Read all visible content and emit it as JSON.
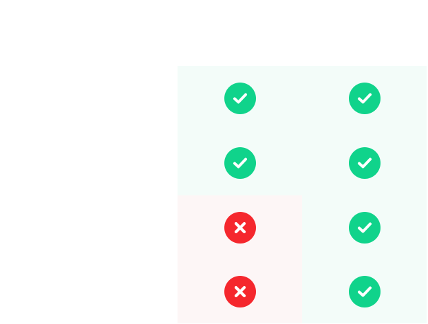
{
  "colors": {
    "yes_icon": "#10d38b",
    "no_icon": "#f5272d",
    "yes_cell_bg": "#f3fcf9",
    "no_cell_bg": "#fdf6f6",
    "page_bg": "#ffffff"
  },
  "comparison": {
    "rows": [
      {
        "cells": [
          {
            "status": "yes",
            "icon": "check-icon"
          },
          {
            "status": "yes",
            "icon": "check-icon"
          }
        ]
      },
      {
        "cells": [
          {
            "status": "yes",
            "icon": "check-icon"
          },
          {
            "status": "yes",
            "icon": "check-icon"
          }
        ]
      },
      {
        "cells": [
          {
            "status": "no",
            "icon": "cross-icon"
          },
          {
            "status": "yes",
            "icon": "check-icon"
          }
        ]
      },
      {
        "cells": [
          {
            "status": "no",
            "icon": "cross-icon"
          },
          {
            "status": "yes",
            "icon": "check-icon"
          }
        ]
      }
    ]
  }
}
